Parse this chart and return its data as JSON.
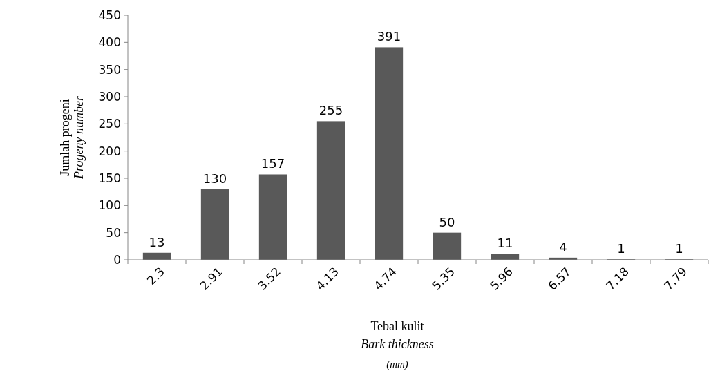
{
  "chart_data": {
    "type": "bar",
    "categories": [
      "2.3",
      "2.91",
      "3.52",
      "4.13",
      "4.74",
      "5.35",
      "5.96",
      "6.57",
      "7.18",
      "7.79"
    ],
    "values": [
      13,
      130,
      157,
      255,
      391,
      50,
      11,
      4,
      1,
      1
    ],
    "color": "#595959",
    "ylim": [
      0,
      450
    ],
    "yticks": [
      0,
      50,
      100,
      150,
      200,
      250,
      300,
      350,
      400,
      450
    ],
    "ylabel": "Jumlah progeni\nProgeny number",
    "xlabel": "Tebal kulit\nBark thickness\n(mm)",
    "data_labels": true,
    "grid": false
  }
}
